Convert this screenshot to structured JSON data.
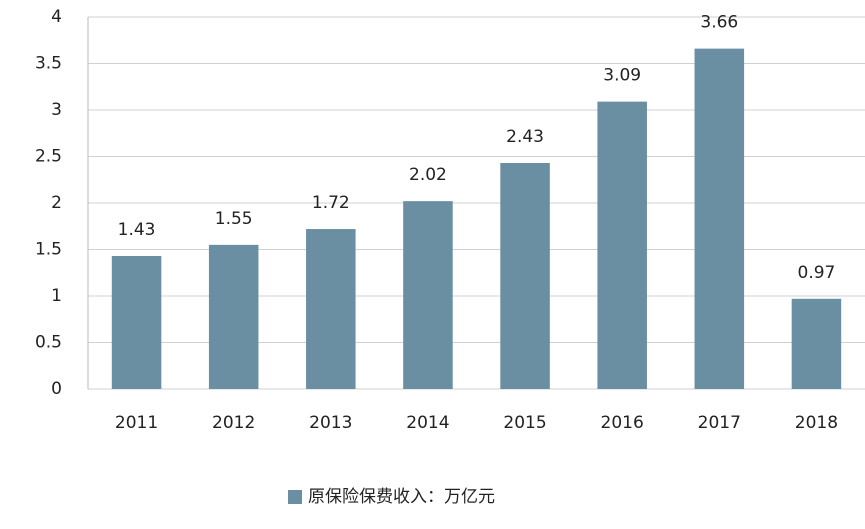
{
  "chart_data": {
    "type": "bar",
    "categories": [
      "2011",
      "2012",
      "2013",
      "2014",
      "2015",
      "2016",
      "2017",
      "2018"
    ],
    "series": [
      {
        "name": "原保险保费收入：万亿元",
        "color": "#6b8fa2",
        "values": [
          1.43,
          1.55,
          1.72,
          2.02,
          2.43,
          3.09,
          3.66,
          0.97
        ]
      }
    ],
    "ylim": [
      0,
      4
    ],
    "yticks": [
      0,
      0.5,
      1,
      1.5,
      2,
      2.5,
      3,
      3.5,
      4
    ],
    "grid": true,
    "legend": "bottom"
  }
}
